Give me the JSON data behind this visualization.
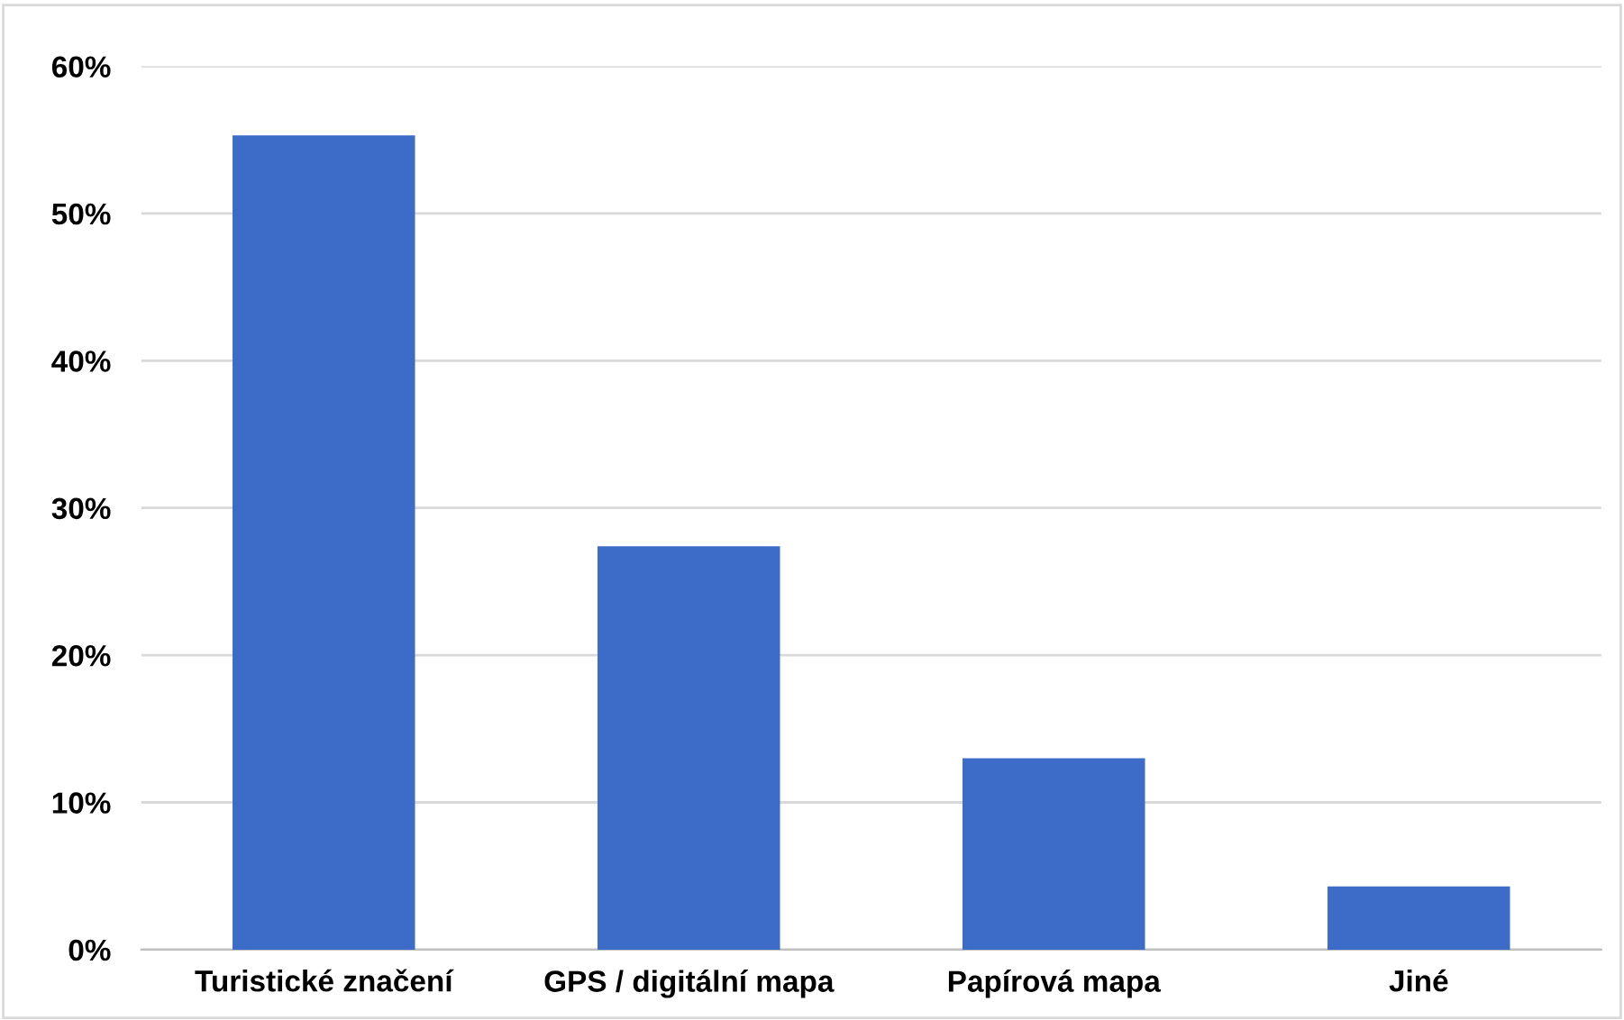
{
  "chart_data": {
    "type": "bar",
    "categories": [
      "Turistické značení",
      "GPS / digitální mapa",
      "Papírová mapa",
      "Jiné"
    ],
    "values": [
      55.3,
      27.4,
      13.0,
      4.3
    ],
    "color": "#3d6cc8",
    "ylim": [
      0,
      60
    ],
    "yticks": [
      {
        "value": 0,
        "label": "0%"
      },
      {
        "value": 10,
        "label": "10%"
      },
      {
        "value": 20,
        "label": "20%"
      },
      {
        "value": 30,
        "label": "30%"
      },
      {
        "value": 40,
        "label": "40%"
      },
      {
        "value": 50,
        "label": "50%"
      },
      {
        "value": 60,
        "label": "60%"
      }
    ],
    "grid": "y",
    "legend": false
  }
}
